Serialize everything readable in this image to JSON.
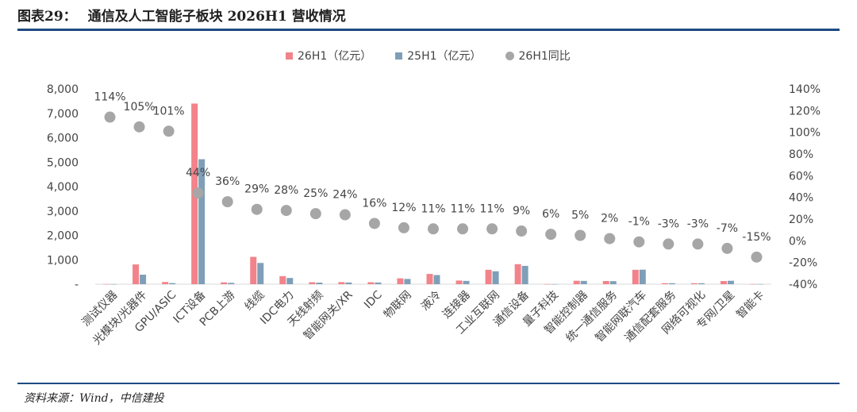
{
  "header": {
    "label": "图表29：",
    "title": "通信及人工智能子板块 2026H1 营收情况"
  },
  "source": "资料来源：Wind，中信建投",
  "colors": {
    "bar26": "#f2838a",
    "bar25": "#7f9fb8",
    "dot": "#a6a6a6",
    "rule": "#1e4a82"
  },
  "chart_data": {
    "type": "bar",
    "title": "",
    "categories": [
      "测试仪器",
      "光模块/光器件",
      "GPU/ASIC",
      "ICT设备",
      "PCB上游",
      "线缆",
      "IDC电力",
      "天线射频",
      "智能网关/XR",
      "IDC",
      "物联网",
      "液冷",
      "连接器",
      "工业互联网",
      "通信设备",
      "量子科技",
      "智能控制器",
      "统一通信服务",
      "智能网联汽车",
      "通信配套服务",
      "网络可视化",
      "专网/卫星",
      "智能卡"
    ],
    "series": [
      {
        "name": "26H1（亿元）",
        "type": "bar",
        "axis": "left",
        "values": [
          5,
          810,
          90,
          7400,
          75,
          1120,
          330,
          80,
          85,
          80,
          240,
          420,
          150,
          590,
          820,
          5,
          140,
          130,
          590,
          40,
          40,
          130,
          5
        ]
      },
      {
        "name": "25H1（亿元）",
        "type": "bar",
        "axis": "left",
        "values": [
          3,
          390,
          45,
          5120,
          55,
          870,
          255,
          65,
          70,
          70,
          215,
          375,
          135,
          530,
          750,
          4,
          135,
          125,
          595,
          40,
          40,
          140,
          5
        ]
      },
      {
        "name": "26H1同比",
        "type": "scatter",
        "axis": "right",
        "values": [
          114,
          105,
          101,
          44,
          36,
          29,
          28,
          25,
          24,
          16,
          12,
          11,
          11,
          11,
          9,
          6,
          5,
          2,
          -1,
          -3,
          -3,
          -7,
          -15
        ],
        "labels": [
          "114%",
          "105%",
          "101%",
          "44%",
          "36%",
          "29%",
          "28%",
          "25%",
          "24%",
          "16%",
          "12%",
          "11%",
          "11%",
          "11%",
          "9%",
          "6%",
          "5%",
          "2%",
          "-1%",
          "-3%",
          "-3%",
          "-7%",
          "-15%"
        ]
      }
    ],
    "y_left": {
      "range": [
        0,
        8000
      ],
      "ticks": [
        0,
        1000,
        2000,
        3000,
        4000,
        5000,
        6000,
        7000,
        8000
      ],
      "tick_labels": [
        "-",
        "1,000",
        "2,000",
        "3,000",
        "4,000",
        "5,000",
        "6,000",
        "7,000",
        "8,000"
      ]
    },
    "y_right": {
      "range": [
        -40,
        140
      ],
      "ticks": [
        -40,
        -20,
        0,
        20,
        40,
        60,
        80,
        100,
        120,
        140
      ],
      "tick_labels": [
        "-40%",
        "-20%",
        "0%",
        "20%",
        "40%",
        "60%",
        "80%",
        "100%",
        "120%",
        "140%"
      ]
    },
    "legend_position": "top-center",
    "grid": false
  }
}
